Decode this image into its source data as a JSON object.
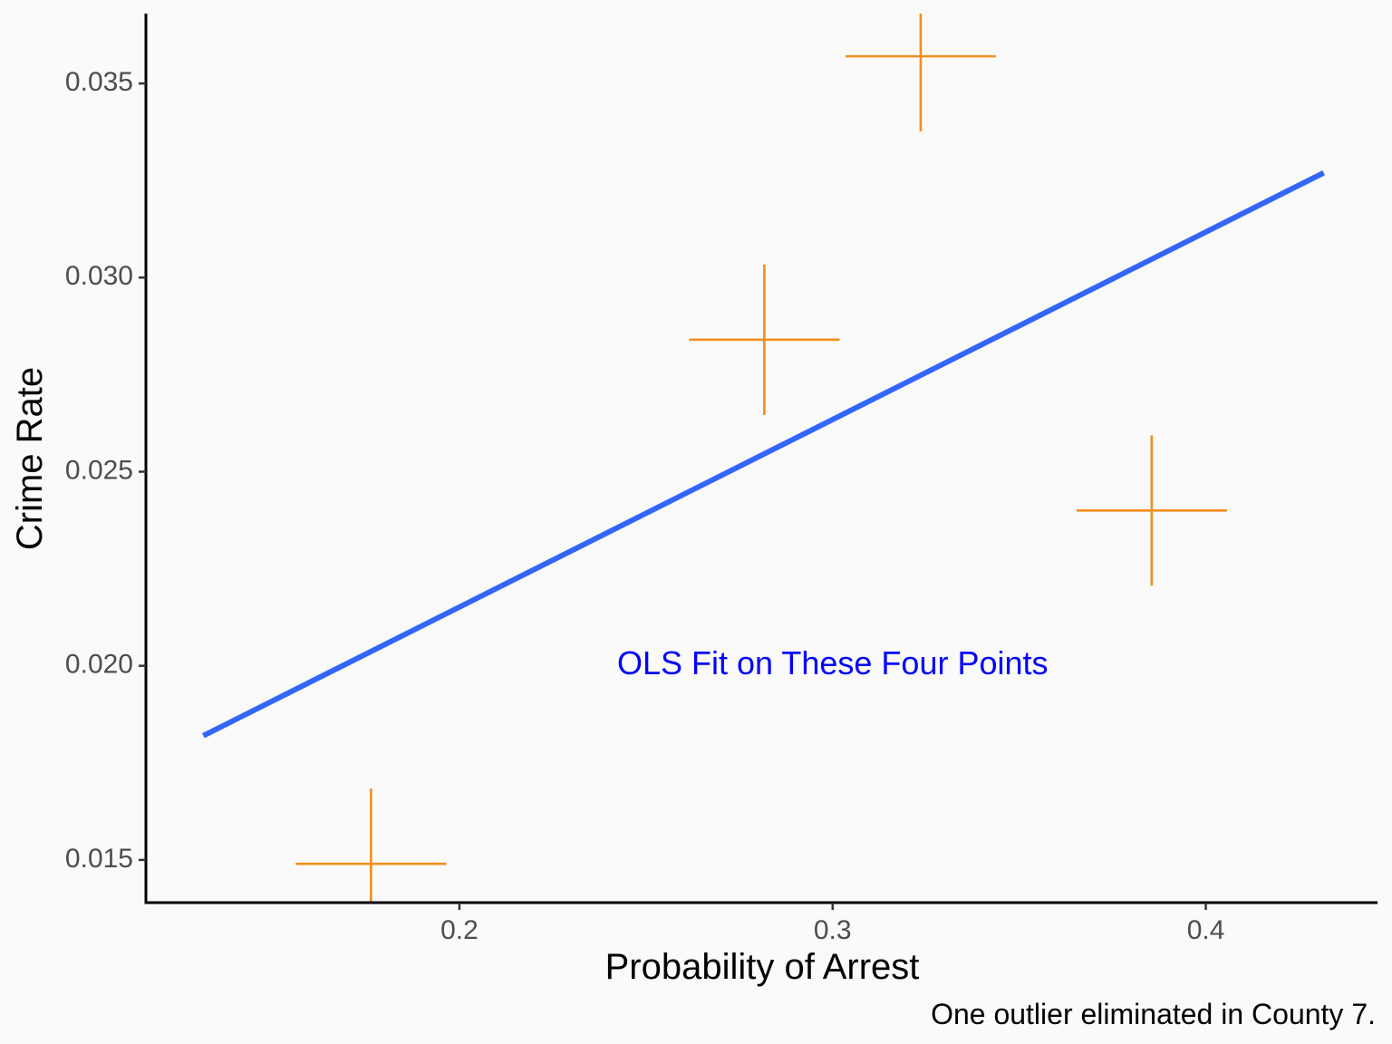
{
  "chart_data": {
    "type": "scatter",
    "xlabel": "Probability of Arrest",
    "ylabel": "Crime Rate",
    "caption": "One outlier eliminated in County 7.",
    "xlim": [
      0.116,
      0.446
    ],
    "ylim": [
      0.0139,
      0.0368
    ],
    "x_ticks": [
      0.2,
      0.3,
      0.4
    ],
    "x_tick_labels": [
      "0.2",
      "0.3",
      "0.4"
    ],
    "y_ticks": [
      0.015,
      0.02,
      0.025,
      0.03,
      0.035
    ],
    "y_tick_labels": [
      "0.015",
      "0.020",
      "0.025",
      "0.030",
      "0.035"
    ],
    "points": [
      {
        "x": 0.1763,
        "y": 0.0149
      },
      {
        "x": 0.2817,
        "y": 0.0284
      },
      {
        "x": 0.3236,
        "y": 0.0357
      },
      {
        "x": 0.3855,
        "y": 0.024
      }
    ],
    "fit_line": {
      "x": [
        0.1314,
        0.4316
      ],
      "y": [
        0.0182,
        0.0327
      ]
    },
    "annotation": {
      "text": "OLS Fit on These Four Points",
      "x": 0.3,
      "y": 0.02
    },
    "grid": false,
    "colors": {
      "points": "#f28e1c",
      "line": "#3366ff",
      "annotation": "#0000ff",
      "axis": "#000000"
    }
  }
}
